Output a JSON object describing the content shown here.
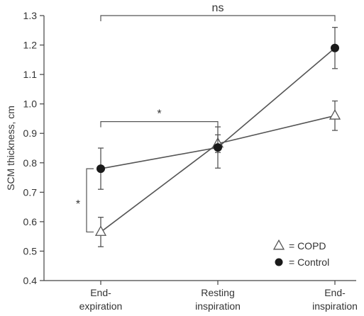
{
  "chart_data": {
    "type": "line",
    "categories": [
      "End-\nexpiration",
      "Resting\ninspiration",
      "End-\ninspiration"
    ],
    "ylabel": "SCM thickness, cm",
    "xlabel": "",
    "ylim": [
      0.4,
      1.3
    ],
    "yticks": [
      "0.4",
      "0.5",
      "0.6",
      "0.7",
      "0.8",
      "0.9",
      "1.0",
      "1.1",
      "1.2",
      "1.3"
    ],
    "grid": false,
    "legend_position": "bottom-right",
    "series": [
      {
        "name": "COPD",
        "legend_label": "= COPD",
        "marker": "open-triangle",
        "values": [
          0.565,
          0.865,
          0.96
        ],
        "err_low": [
          0.515,
          0.835,
          0.91
        ],
        "err_high": [
          0.615,
          0.895,
          1.01
        ]
      },
      {
        "name": "Control",
        "legend_label": "= Control",
        "marker": "filled-circle",
        "values": [
          0.78,
          0.852,
          1.19
        ],
        "err_low": [
          0.71,
          0.782,
          1.12
        ],
        "err_high": [
          0.85,
          0.922,
          1.26
        ]
      }
    ],
    "annotations": [
      {
        "label": "ns",
        "type": "bracket-top",
        "from_cat": 0,
        "to_cat": 2,
        "level": 1.3
      },
      {
        "label": "*",
        "type": "bracket-top",
        "from_cat": 0,
        "to_cat": 1,
        "level": 0.94
      },
      {
        "label": "*",
        "type": "bracket-left",
        "cat": 0,
        "from": 0.565,
        "to": 0.78
      }
    ]
  },
  "colors": {
    "line": "#555555",
    "marker_fill": "#1a1a1a",
    "triangle_fill": "#ffffff",
    "text": "#333333"
  }
}
